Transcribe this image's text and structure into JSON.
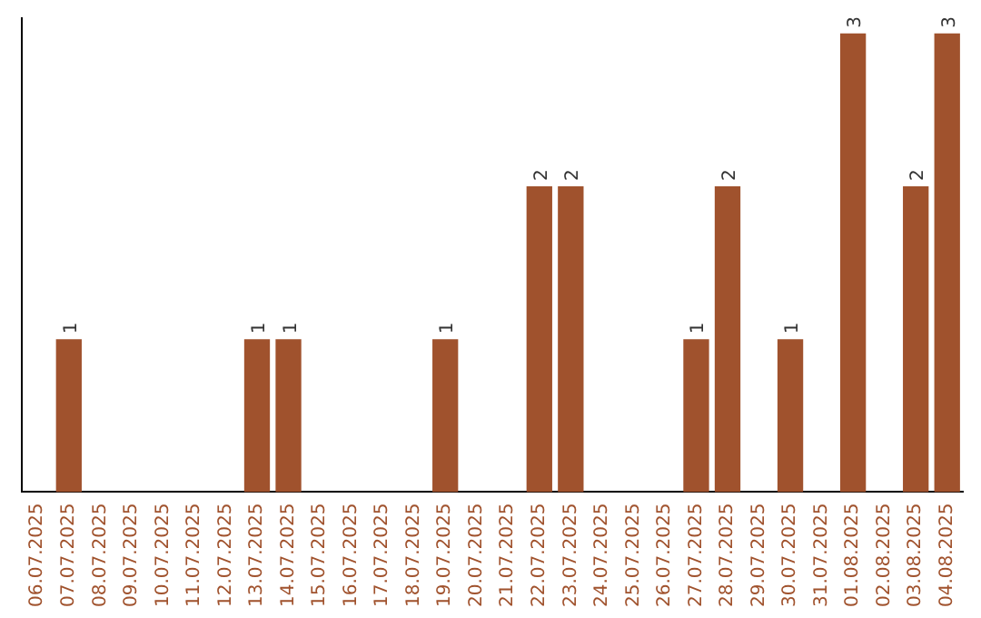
{
  "chart_data": {
    "type": "bar",
    "categories": [
      "06.07.2025",
      "07.07.2025",
      "08.07.2025",
      "09.07.2025",
      "10.07.2025",
      "11.07.2025",
      "12.07.2025",
      "13.07.2025",
      "14.07.2025",
      "15.07.2025",
      "16.07.2025",
      "17.07.2025",
      "18.07.2025",
      "19.07.2025",
      "20.07.2025",
      "21.07.2025",
      "22.07.2025",
      "23.07.2025",
      "24.07.2025",
      "25.07.2025",
      "26.07.2025",
      "27.07.2025",
      "28.07.2025",
      "29.07.2025",
      "30.07.2025",
      "31.07.2025",
      "01.08.2025",
      "02.08.2025",
      "03.08.2025",
      "04.08.2025"
    ],
    "values": [
      0,
      1,
      0,
      0,
      0,
      0,
      0,
      1,
      1,
      0,
      0,
      0,
      0,
      1,
      0,
      0,
      2,
      2,
      0,
      0,
      0,
      1,
      2,
      0,
      1,
      0,
      3,
      0,
      2,
      3
    ],
    "value_labels": [
      null,
      "1",
      null,
      null,
      null,
      null,
      null,
      "1",
      "1",
      null,
      null,
      null,
      null,
      "1",
      null,
      null,
      "2",
      "2",
      null,
      null,
      null,
      "1",
      "2",
      null,
      "1",
      null,
      "3",
      null,
      "2",
      "3"
    ],
    "color": "#a0522d",
    "ylim": [
      0,
      3.1
    ],
    "tick_labels": "x",
    "grid": false,
    "legend": false
  }
}
